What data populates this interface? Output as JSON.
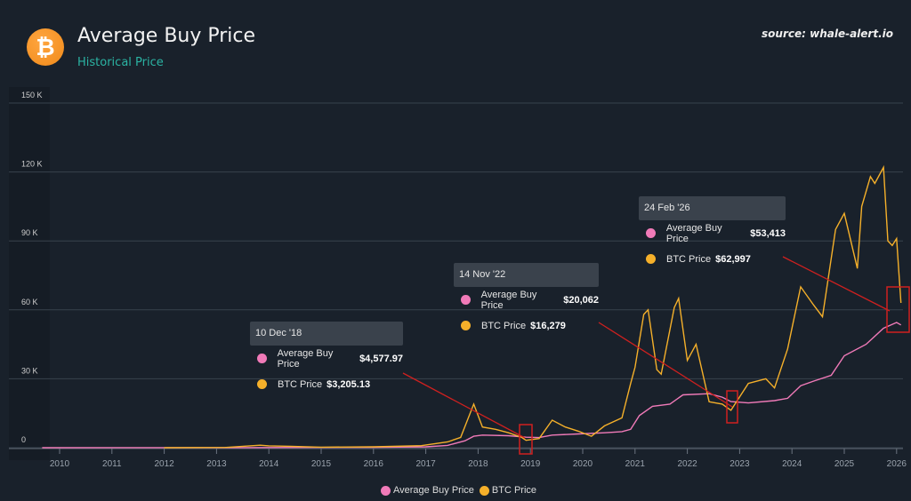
{
  "header": {
    "logo_glyph": "₿",
    "title": "Average Buy Price",
    "subtitle": "Historical Price",
    "source": "source: whale-alert.io"
  },
  "colors": {
    "background": "#19212b",
    "avg_buy": "#f07ab8",
    "btc": "#f5b02a",
    "annotation": "#d0201f",
    "grid": "#38424d"
  },
  "tooltips": [
    {
      "date": "10 Dec '18",
      "avg_label": "Average Buy Price",
      "avg_value": "$4,577.97",
      "btc_label": "BTC Price",
      "btc_value": "$3,205.13"
    },
    {
      "date": "14 Nov '22",
      "avg_label": "Average Buy Price",
      "avg_value": "$20,062",
      "btc_label": "BTC Price",
      "btc_value": "$16,279"
    },
    {
      "date": "24 Feb '26",
      "avg_label": "Average Buy Price",
      "avg_value": "$53,413",
      "btc_label": "BTC Price",
      "btc_value": "$62,997"
    }
  ],
  "chart_data": {
    "type": "line",
    "title": "Average Buy Price",
    "subtitle": "Historical Price",
    "xlim": [
      "2009-09",
      "2026-02"
    ],
    "ylim": [
      0,
      150000
    ],
    "grid": true,
    "legend": "bottom",
    "x_ticks": [
      "2010",
      "2011",
      "2012",
      "2013",
      "2014",
      "2015",
      "2016",
      "2017",
      "2018",
      "2019",
      "2020",
      "2021",
      "2022",
      "2023",
      "2024",
      "2025",
      "2026"
    ],
    "y_ticks": [
      {
        "v": 0,
        "label": "0"
      },
      {
        "v": 30000,
        "label": "30 K"
      },
      {
        "v": 60000,
        "label": "60 K"
      },
      {
        "v": 90000,
        "label": "90 K"
      },
      {
        "v": 120000,
        "label": "120 K"
      },
      {
        "v": 150000,
        "label": "150 K"
      }
    ],
    "series": [
      {
        "name": "Average Buy Price",
        "color": "#f07ab8",
        "points": [
          [
            "2009-09",
            0
          ],
          [
            "2013-06",
            50
          ],
          [
            "2016-01",
            200
          ],
          [
            "2017-01",
            400
          ],
          [
            "2017-06",
            1000
          ],
          [
            "2017-10",
            3000
          ],
          [
            "2017-12",
            5000
          ],
          [
            "2018-02",
            5500
          ],
          [
            "2018-08",
            5200
          ],
          [
            "2018-12",
            4578
          ],
          [
            "2019-03",
            4400
          ],
          [
            "2019-06",
            5500
          ],
          [
            "2019-12",
            6000
          ],
          [
            "2020-06",
            6500
          ],
          [
            "2020-10",
            7000
          ],
          [
            "2020-12",
            8000
          ],
          [
            "2021-02",
            14000
          ],
          [
            "2021-05",
            18000
          ],
          [
            "2021-09",
            19000
          ],
          [
            "2021-12",
            23000
          ],
          [
            "2022-06",
            23500
          ],
          [
            "2022-09",
            22000
          ],
          [
            "2022-11",
            20062
          ],
          [
            "2023-03",
            19500
          ],
          [
            "2023-09",
            20500
          ],
          [
            "2023-12",
            21500
          ],
          [
            "2024-03",
            27000
          ],
          [
            "2024-06",
            29000
          ],
          [
            "2024-10",
            31500
          ],
          [
            "2025-01",
            40000
          ],
          [
            "2025-06",
            45000
          ],
          [
            "2025-10",
            52000
          ],
          [
            "2026-01",
            54500
          ],
          [
            "2026-02",
            53413
          ]
        ]
      },
      {
        "name": "BTC Price",
        "color": "#f5b02a",
        "points": [
          [
            "2012-01",
            5
          ],
          [
            "2013-03",
            100
          ],
          [
            "2013-11",
            1100
          ],
          [
            "2014-01",
            800
          ],
          [
            "2014-06",
            600
          ],
          [
            "2015-01",
            250
          ],
          [
            "2016-01",
            400
          ],
          [
            "2016-12",
            900
          ],
          [
            "2017-06",
            2500
          ],
          [
            "2017-09",
            4500
          ],
          [
            "2017-12",
            19000
          ],
          [
            "2018-02",
            9000
          ],
          [
            "2018-05",
            8000
          ],
          [
            "2018-08",
            6500
          ],
          [
            "2018-11",
            4500
          ],
          [
            "2018-12",
            3205
          ],
          [
            "2019-03",
            4000
          ],
          [
            "2019-06",
            12000
          ],
          [
            "2019-09",
            9000
          ],
          [
            "2019-12",
            7200
          ],
          [
            "2020-03",
            5000
          ],
          [
            "2020-06",
            9500
          ],
          [
            "2020-10",
            13000
          ],
          [
            "2020-12",
            28000
          ],
          [
            "2021-01",
            35000
          ],
          [
            "2021-03",
            58000
          ],
          [
            "2021-04",
            60000
          ],
          [
            "2021-06",
            34000
          ],
          [
            "2021-07",
            32000
          ],
          [
            "2021-10",
            61000
          ],
          [
            "2021-11",
            65000
          ],
          [
            "2022-01",
            38000
          ],
          [
            "2022-03",
            45000
          ],
          [
            "2022-06",
            20000
          ],
          [
            "2022-09",
            19000
          ],
          [
            "2022-11",
            16279
          ],
          [
            "2023-03",
            28000
          ],
          [
            "2023-07",
            30000
          ],
          [
            "2023-09",
            26000
          ],
          [
            "2023-12",
            43000
          ],
          [
            "2024-03",
            70000
          ],
          [
            "2024-06",
            62000
          ],
          [
            "2024-08",
            57000
          ],
          [
            "2024-11",
            95000
          ],
          [
            "2025-01",
            102000
          ],
          [
            "2025-04",
            78000
          ],
          [
            "2025-05",
            105000
          ],
          [
            "2025-07",
            118000
          ],
          [
            "2025-08",
            115000
          ],
          [
            "2025-10",
            122000
          ],
          [
            "2025-11",
            90000
          ],
          [
            "2025-12",
            88000
          ],
          [
            "2026-01",
            91000
          ],
          [
            "2026-02",
            62997
          ]
        ]
      }
    ],
    "highlights": [
      "2018-12",
      "2022-11",
      "2026-02"
    ]
  }
}
